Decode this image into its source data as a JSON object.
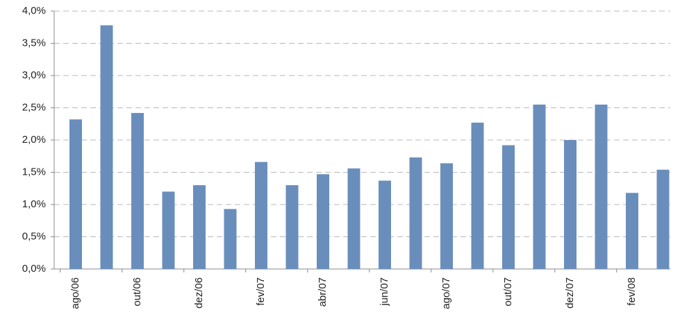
{
  "chart_data": {
    "type": "bar",
    "categories": [
      "ago/06",
      null,
      "out/06",
      null,
      "dez/06",
      null,
      "fev/07",
      null,
      "abr/07",
      null,
      "jun/07",
      null,
      "ago/07",
      null,
      "out/07",
      null,
      "dez/07",
      null,
      "fev/08",
      null
    ],
    "values": [
      2.32,
      3.78,
      2.42,
      1.2,
      1.3,
      0.93,
      1.66,
      1.3,
      1.47,
      1.56,
      1.37,
      1.73,
      1.64,
      2.27,
      1.92,
      2.55,
      2.0,
      2.55,
      1.18,
      1.54
    ],
    "color": "#6a8ebc",
    "ylim": [
      0,
      4
    ],
    "yticks": [
      {
        "value": 0,
        "label": "0,0%"
      },
      {
        "value": 0.5,
        "label": "0,5%"
      },
      {
        "value": 1,
        "label": "1,0%"
      },
      {
        "value": 1.5,
        "label": "1,5%"
      },
      {
        "value": 2,
        "label": "2,0%"
      },
      {
        "value": 2.5,
        "label": "2,5%"
      },
      {
        "value": 3,
        "label": "3,0%"
      },
      {
        "value": 3.5,
        "label": "3,5%"
      },
      {
        "value": 4,
        "label": "4,0%"
      }
    ],
    "grid": true
  }
}
